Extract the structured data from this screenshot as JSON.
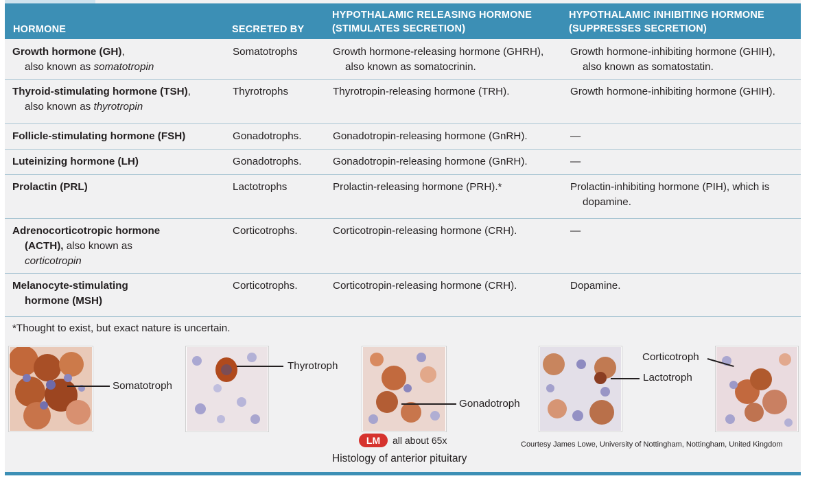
{
  "table": {
    "headers": {
      "hormone": "HORMONE",
      "secreted_by": "SECRETED BY",
      "releasing_line1": "HYPOTHALAMIC RELEASING HORMONE",
      "releasing_line2": "(STIMULATES SECRETION)",
      "inhibiting_line1": "HYPOTHALAMIC INHIBITING HORMONE",
      "inhibiting_line2": "(SUPPRESSES SECRETION)"
    },
    "rows": [
      {
        "hormone_bold": "Growth hormone (GH)",
        "hormone_rest": ",",
        "hormone_line2_prefix": "also known as ",
        "hormone_line2_italic": "somatotropin",
        "secreted_by": "Somatotrophs",
        "releasing_l1": "Growth hormone-releasing hormone (GHRH),",
        "releasing_l2": "also known as somatocrinin.",
        "inhibiting_l1": "Growth hormone-inhibiting hormone (GHIH),",
        "inhibiting_l2": "also known as somatostatin."
      },
      {
        "hormone_bold": "Thyroid-stimulating hormone (TSH)",
        "hormone_rest": ",",
        "hormone_line2_prefix": "also known as ",
        "hormone_line2_italic": "thyrotropin",
        "secreted_by": "Thyrotrophs",
        "releasing_l1": "Thyrotropin-releasing hormone (TRH).",
        "inhibiting_l1": "Growth hormone-inhibiting hormone (GHIH)."
      },
      {
        "hormone_bold": "Follicle-stimulating hormone (FSH)",
        "secreted_by": "Gonadotrophs.",
        "releasing_l1": "Gonadotropin-releasing hormone (GnRH).",
        "inhibiting_l1": "—"
      },
      {
        "hormone_bold": "Luteinizing hormone (LH)",
        "secreted_by": "Gonadotrophs.",
        "releasing_l1": "Gonadotropin-releasing hormone (GnRH).",
        "inhibiting_l1": "—"
      },
      {
        "hormone_bold": "Prolactin (PRL)",
        "secreted_by": "Lactotrophs",
        "releasing_l1": "Prolactin-releasing hormone (PRH).*",
        "inhibiting_l1": "Prolactin-inhibiting hormone (PIH), which is",
        "inhibiting_l2": "dopamine."
      },
      {
        "hormone_bold": "Adrenocorticotropic hormone",
        "hormone_line2_bold": "(ACTH),",
        "hormone_line2_prefix": " also known as",
        "hormone_line3_italic": "corticotropin",
        "secreted_by": "Corticotrophs.",
        "releasing_l1": "Corticotropin-releasing hormone (CRH).",
        "inhibiting_l1": "—"
      },
      {
        "hormone_bold": "Melanocyte-stimulating",
        "hormone_line2_bold": "hormone (MSH)",
        "secreted_by": "Corticotrophs.",
        "releasing_l1": "Corticotropin-releasing hormone (CRH).",
        "inhibiting_l1": "Dopamine."
      }
    ],
    "footnote": "*Thought to exist, but exact nature is uncertain."
  },
  "figure": {
    "labels": {
      "somatotroph": "Somatotroph",
      "thyrotroph": "Thyrotroph",
      "gonadotroph": "Gonadotroph",
      "corticotroph": "Corticotroph",
      "lactotroph": "Lactotroph"
    },
    "lm_badge": "LM",
    "magnification": "all about 65x",
    "caption": "Histology of anterior pituitary",
    "courtesy": "Courtesy James Lowe, University of Nottingham, Nottingham, United Kingdom"
  },
  "colors": {
    "header_bg": "#3c8fb5",
    "panel_bg": "#f1f1f2",
    "row_rule": "#a9c5d3",
    "lm_badge": "#d6332e",
    "stain_brown": "#b5562a",
    "tissue_blue": "#a9a6cf"
  }
}
